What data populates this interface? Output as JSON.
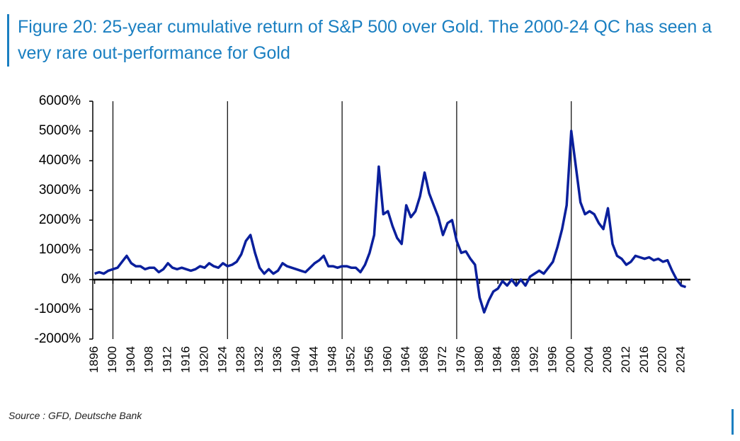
{
  "chart_data": {
    "type": "line",
    "title": "Figure 20: 25-year cumulative return of S&P 500 over Gold. The 2000-24 QC has seen a very rare out-performance for Gold",
    "source": "Source : GFD, Deutsche Bank",
    "x": [
      1896,
      1897,
      1898,
      1899,
      1900,
      1901,
      1902,
      1903,
      1904,
      1905,
      1906,
      1907,
      1908,
      1909,
      1910,
      1911,
      1912,
      1913,
      1914,
      1915,
      1916,
      1917,
      1918,
      1919,
      1920,
      1921,
      1922,
      1923,
      1924,
      1925,
      1926,
      1927,
      1928,
      1929,
      1930,
      1931,
      1932,
      1933,
      1934,
      1935,
      1936,
      1937,
      1938,
      1939,
      1940,
      1941,
      1942,
      1943,
      1944,
      1945,
      1946,
      1947,
      1948,
      1949,
      1950,
      1951,
      1952,
      1953,
      1954,
      1955,
      1956,
      1957,
      1958,
      1959,
      1960,
      1961,
      1962,
      1963,
      1964,
      1965,
      1966,
      1967,
      1968,
      1969,
      1970,
      1971,
      1972,
      1973,
      1974,
      1975,
      1976,
      1977,
      1978,
      1979,
      1980,
      1981,
      1982,
      1983,
      1984,
      1985,
      1986,
      1987,
      1988,
      1989,
      1990,
      1991,
      1992,
      1993,
      1994,
      1995,
      1996,
      1997,
      1998,
      1999,
      2000,
      2001,
      2002,
      2003,
      2004,
      2005,
      2006,
      2007,
      2008,
      2009,
      2010,
      2011,
      2012,
      2013,
      2014,
      2015,
      2016,
      2017,
      2018,
      2019,
      2020,
      2021,
      2022,
      2023,
      2024,
      2025
    ],
    "series": [
      {
        "color": "#0a1f9c",
        "values": [
          200,
          250,
          200,
          300,
          350,
          400,
          600,
          800,
          550,
          450,
          450,
          350,
          400,
          400,
          250,
          350,
          550,
          400,
          350,
          400,
          350,
          300,
          350,
          450,
          400,
          550,
          450,
          400,
          550,
          450,
          500,
          600,
          850,
          1300,
          1500,
          900,
          400,
          200,
          350,
          200,
          300,
          550,
          450,
          400,
          350,
          300,
          250,
          400,
          550,
          650,
          800,
          450,
          450,
          400,
          450,
          450,
          400,
          400,
          250,
          500,
          900,
          1500,
          3800,
          2200,
          2300,
          1800,
          1400,
          1200,
          2500,
          2100,
          2300,
          2800,
          3600,
          2900,
          2500,
          2100,
          1500,
          1900,
          2000,
          1300,
          900,
          950,
          700,
          500,
          -600,
          -1100,
          -700,
          -400,
          -300,
          -50,
          -200,
          0,
          -200,
          0,
          -200,
          100,
          200,
          300,
          200,
          400,
          600,
          1100,
          1700,
          2500,
          5000,
          3800,
          2600,
          2200,
          2300,
          2200,
          1900,
          1700,
          2400,
          1200,
          800,
          700,
          500,
          600,
          800,
          750,
          700,
          750,
          650,
          700,
          600,
          650,
          300,
          0,
          -200,
          -250
        ]
      }
    ],
    "xlim": [
      1895.6,
      2026
    ],
    "xticks": [
      1896,
      1900,
      1904,
      1908,
      1912,
      1916,
      1920,
      1924,
      1928,
      1932,
      1936,
      1940,
      1944,
      1948,
      1952,
      1956,
      1960,
      1964,
      1968,
      1972,
      1976,
      1980,
      1984,
      1988,
      1992,
      1996,
      2000,
      2004,
      2008,
      2012,
      2016,
      2020,
      2024
    ],
    "ylim": [
      -2000,
      6000
    ],
    "yticks": [
      {
        "value": -2000,
        "label": "-2000%"
      },
      {
        "value": -1000,
        "label": "-1000%"
      },
      {
        "value": 0,
        "label": "0%"
      },
      {
        "value": 1000,
        "label": "1000%"
      },
      {
        "value": 2000,
        "label": "2000%"
      },
      {
        "value": 3000,
        "label": "3000%"
      },
      {
        "value": 4000,
        "label": "4000%"
      },
      {
        "value": 5000,
        "label": "5000%"
      },
      {
        "value": 6000,
        "label": "6000%"
      }
    ],
    "vlines": [
      1900,
      1925,
      1950,
      1975,
      2000
    ]
  }
}
